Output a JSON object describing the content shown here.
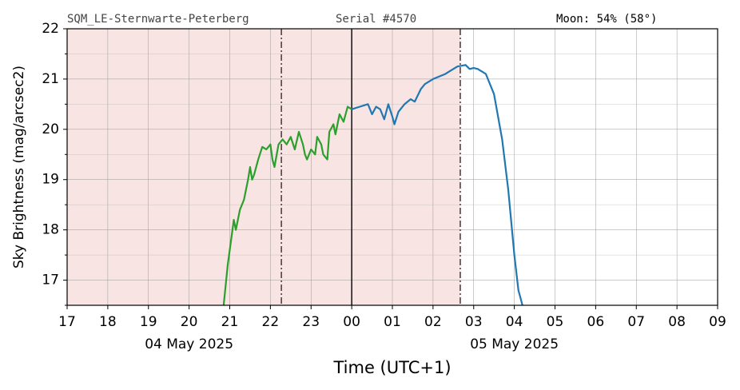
{
  "chart_data": {
    "type": "line",
    "header_left": "SQM_LE-Sternwarte-Peterberg",
    "header_mid": "Serial #4570",
    "header_right": "Moon: 54% (58°)",
    "ylabel": "Sky Brightness (mag/arcsec2)",
    "xlabel": "Time (UTC+1)",
    "xlim": [
      17,
      33
    ],
    "ylim": [
      16.5,
      22
    ],
    "xticks": [
      17,
      18,
      19,
      20,
      21,
      22,
      23,
      {
        "value": 24,
        "label": "00"
      },
      {
        "value": 25,
        "label": "01"
      },
      {
        "value": 26,
        "label": "02"
      },
      {
        "value": 27,
        "label": "03"
      },
      {
        "value": 28,
        "label": "04"
      },
      {
        "value": 29,
        "label": "05"
      },
      {
        "value": 30,
        "label": "06"
      },
      {
        "value": 31,
        "label": "07"
      },
      {
        "value": 32,
        "label": "08"
      },
      {
        "value": 33,
        "label": "09"
      }
    ],
    "yticks": [
      17,
      18,
      19,
      20,
      21,
      22
    ],
    "yminorticks": [
      16.5,
      17.5,
      18.5,
      19.5,
      20.5,
      21.5
    ],
    "date_labels": [
      {
        "value": 20,
        "label": "04 May 2025"
      },
      {
        "value": 28,
        "label": "05 May 2025"
      }
    ],
    "grid": true,
    "shade": {
      "from": 17,
      "to": 26.67,
      "color": "#f9e4e4"
    },
    "vlines": [
      {
        "x": 22.27,
        "style": "dashdot"
      },
      {
        "x": 24,
        "style": "solid"
      },
      {
        "x": 26.67,
        "style": "dashdot"
      }
    ],
    "series": [
      {
        "color": "#2ca02c",
        "x": [
          20.85,
          20.95,
          21.05,
          21.1,
          21.15,
          21.25,
          21.35,
          21.45,
          21.5,
          21.55,
          21.6,
          21.7,
          21.8,
          21.9,
          22.0,
          22.05,
          22.1,
          22.2,
          22.3,
          22.4,
          22.5,
          22.6,
          22.7,
          22.8,
          22.85,
          22.9,
          23.0,
          23.1,
          23.15,
          23.25,
          23.3,
          23.4,
          23.45,
          23.55,
          23.6,
          23.7,
          23.8,
          23.9,
          24.0
        ],
        "values": [
          16.5,
          17.3,
          17.9,
          18.2,
          18.0,
          18.4,
          18.6,
          19.0,
          19.25,
          19.0,
          19.1,
          19.4,
          19.65,
          19.6,
          19.7,
          19.4,
          19.25,
          19.7,
          19.8,
          19.7,
          19.85,
          19.6,
          19.95,
          19.7,
          19.5,
          19.4,
          19.6,
          19.5,
          19.85,
          19.7,
          19.5,
          19.4,
          19.95,
          20.1,
          19.9,
          20.3,
          20.15,
          20.45,
          20.4
        ]
      },
      {
        "color": "#1f77b4",
        "x": [
          24.0,
          24.2,
          24.4,
          24.5,
          24.6,
          24.7,
          24.8,
          24.9,
          25.0,
          25.05,
          25.15,
          25.3,
          25.45,
          25.55,
          25.7,
          25.8,
          26.0,
          26.3,
          26.6,
          26.8,
          26.9,
          27.0,
          27.1,
          27.3,
          27.5,
          27.7,
          27.85,
          28.0,
          28.1,
          28.2
        ],
        "values": [
          20.4,
          20.45,
          20.5,
          20.3,
          20.45,
          20.4,
          20.2,
          20.5,
          20.25,
          20.1,
          20.35,
          20.5,
          20.6,
          20.55,
          20.8,
          20.9,
          21.0,
          21.1,
          21.25,
          21.28,
          21.2,
          21.22,
          21.2,
          21.1,
          20.7,
          19.8,
          18.8,
          17.5,
          16.8,
          16.5
        ]
      }
    ]
  }
}
